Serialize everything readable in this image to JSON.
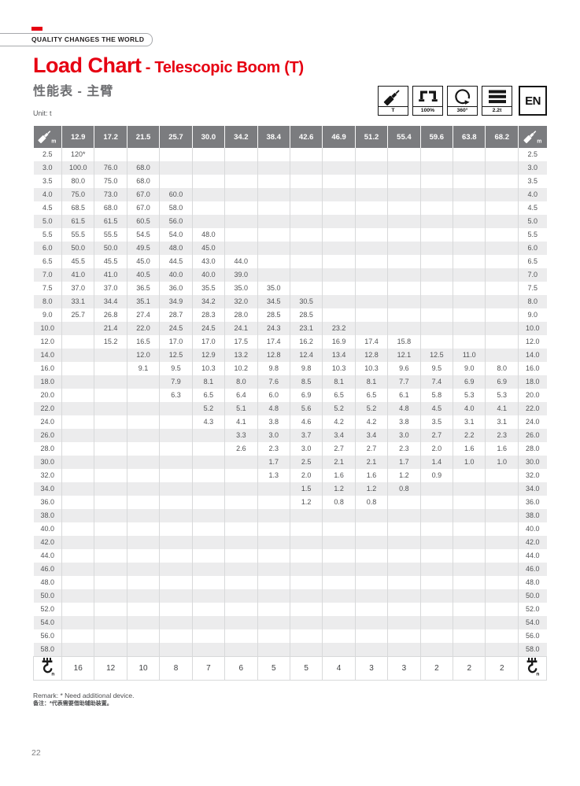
{
  "brand": {
    "tagline": "QUALITY CHANGES THE WORLD"
  },
  "header": {
    "title_main": "Load Chart",
    "title_sub": " - Telescopic Boom (T)",
    "title_cn": "性能表 - 主臂",
    "unit_label": "Unit: t"
  },
  "badges": [
    {
      "icon": "telescopic-boom-icon",
      "label": "T"
    },
    {
      "icon": "outrigger-icon",
      "label": "100%"
    },
    {
      "icon": "slewing-icon",
      "label": "360°"
    },
    {
      "icon": "counterweight-icon",
      "label": "2.2t"
    },
    {
      "icon": "language-badge",
      "label": "EN"
    }
  ],
  "table": {
    "corner_icon": "boom-length-m-icon",
    "hook_icon": "hook-parts-n-icon",
    "boom_lengths": [
      "12.9",
      "17.2",
      "21.5",
      "25.7",
      "30.0",
      "34.2",
      "38.4",
      "42.6",
      "46.9",
      "51.2",
      "55.4",
      "59.6",
      "63.8",
      "68.2"
    ],
    "rows": [
      {
        "radius": "2.5",
        "values": [
          "120*",
          "",
          "",
          "",
          "",
          "",
          "",
          "",
          "",
          "",
          "",
          "",
          "",
          ""
        ]
      },
      {
        "radius": "3.0",
        "values": [
          "100.0",
          "76.0",
          "68.0",
          "",
          "",
          "",
          "",
          "",
          "",
          "",
          "",
          "",
          "",
          ""
        ]
      },
      {
        "radius": "3.5",
        "values": [
          "80.0",
          "75.0",
          "68.0",
          "",
          "",
          "",
          "",
          "",
          "",
          "",
          "",
          "",
          "",
          ""
        ]
      },
      {
        "radius": "4.0",
        "values": [
          "75.0",
          "73.0",
          "67.0",
          "60.0",
          "",
          "",
          "",
          "",
          "",
          "",
          "",
          "",
          "",
          ""
        ]
      },
      {
        "radius": "4.5",
        "values": [
          "68.5",
          "68.0",
          "67.0",
          "58.0",
          "",
          "",
          "",
          "",
          "",
          "",
          "",
          "",
          "",
          ""
        ]
      },
      {
        "radius": "5.0",
        "values": [
          "61.5",
          "61.5",
          "60.5",
          "56.0",
          "",
          "",
          "",
          "",
          "",
          "",
          "",
          "",
          "",
          ""
        ]
      },
      {
        "radius": "5.5",
        "values": [
          "55.5",
          "55.5",
          "54.5",
          "54.0",
          "48.0",
          "",
          "",
          "",
          "",
          "",
          "",
          "",
          "",
          ""
        ]
      },
      {
        "radius": "6.0",
        "values": [
          "50.0",
          "50.0",
          "49.5",
          "48.0",
          "45.0",
          "",
          "",
          "",
          "",
          "",
          "",
          "",
          "",
          ""
        ]
      },
      {
        "radius": "6.5",
        "values": [
          "45.5",
          "45.5",
          "45.0",
          "44.5",
          "43.0",
          "44.0",
          "",
          "",
          "",
          "",
          "",
          "",
          "",
          ""
        ]
      },
      {
        "radius": "7.0",
        "values": [
          "41.0",
          "41.0",
          "40.5",
          "40.0",
          "40.0",
          "39.0",
          "",
          "",
          "",
          "",
          "",
          "",
          "",
          ""
        ]
      },
      {
        "radius": "7.5",
        "values": [
          "37.0",
          "37.0",
          "36.5",
          "36.0",
          "35.5",
          "35.0",
          "35.0",
          "",
          "",
          "",
          "",
          "",
          "",
          ""
        ]
      },
      {
        "radius": "8.0",
        "values": [
          "33.1",
          "34.4",
          "35.1",
          "34.9",
          "34.2",
          "32.0",
          "34.5",
          "30.5",
          "",
          "",
          "",
          "",
          "",
          ""
        ]
      },
      {
        "radius": "9.0",
        "values": [
          "25.7",
          "26.8",
          "27.4",
          "28.7",
          "28.3",
          "28.0",
          "28.5",
          "28.5",
          "",
          "",
          "",
          "",
          "",
          ""
        ]
      },
      {
        "radius": "10.0",
        "values": [
          "",
          "21.4",
          "22.0",
          "24.5",
          "24.5",
          "24.1",
          "24.3",
          "23.1",
          "23.2",
          "",
          "",
          "",
          "",
          ""
        ]
      },
      {
        "radius": "12.0",
        "values": [
          "",
          "15.2",
          "16.5",
          "17.0",
          "17.0",
          "17.5",
          "17.4",
          "16.2",
          "16.9",
          "17.4",
          "15.8",
          "",
          "",
          ""
        ]
      },
      {
        "radius": "14.0",
        "values": [
          "",
          "",
          "12.0",
          "12.5",
          "12.9",
          "13.2",
          "12.8",
          "12.4",
          "13.4",
          "12.8",
          "12.1",
          "12.5",
          "11.0",
          ""
        ]
      },
      {
        "radius": "16.0",
        "values": [
          "",
          "",
          "9.1",
          "9.5",
          "10.3",
          "10.2",
          "9.8",
          "9.8",
          "10.3",
          "10.3",
          "9.6",
          "9.5",
          "9.0",
          "8.0"
        ]
      },
      {
        "radius": "18.0",
        "values": [
          "",
          "",
          "",
          "7.9",
          "8.1",
          "8.0",
          "7.6",
          "8.5",
          "8.1",
          "8.1",
          "7.7",
          "7.4",
          "6.9",
          "6.9"
        ]
      },
      {
        "radius": "20.0",
        "values": [
          "",
          "",
          "",
          "6.3",
          "6.5",
          "6.4",
          "6.0",
          "6.9",
          "6.5",
          "6.5",
          "6.1",
          "5.8",
          "5.3",
          "5.3"
        ]
      },
      {
        "radius": "22.0",
        "values": [
          "",
          "",
          "",
          "",
          "5.2",
          "5.1",
          "4.8",
          "5.6",
          "5.2",
          "5.2",
          "4.8",
          "4.5",
          "4.0",
          "4.1"
        ]
      },
      {
        "radius": "24.0",
        "values": [
          "",
          "",
          "",
          "",
          "4.3",
          "4.1",
          "3.8",
          "4.6",
          "4.2",
          "4.2",
          "3.8",
          "3.5",
          "3.1",
          "3.1"
        ]
      },
      {
        "radius": "26.0",
        "values": [
          "",
          "",
          "",
          "",
          "",
          "3.3",
          "3.0",
          "3.7",
          "3.4",
          "3.4",
          "3.0",
          "2.7",
          "2.2",
          "2.3"
        ]
      },
      {
        "radius": "28.0",
        "values": [
          "",
          "",
          "",
          "",
          "",
          "2.6",
          "2.3",
          "3.0",
          "2.7",
          "2.7",
          "2.3",
          "2.0",
          "1.6",
          "1.6"
        ]
      },
      {
        "radius": "30.0",
        "values": [
          "",
          "",
          "",
          "",
          "",
          "",
          "1.7",
          "2.5",
          "2.1",
          "2.1",
          "1.7",
          "1.4",
          "1.0",
          "1.0"
        ]
      },
      {
        "radius": "32.0",
        "values": [
          "",
          "",
          "",
          "",
          "",
          "",
          "1.3",
          "2.0",
          "1.6",
          "1.6",
          "1.2",
          "0.9",
          "",
          ""
        ]
      },
      {
        "radius": "34.0",
        "values": [
          "",
          "",
          "",
          "",
          "",
          "",
          "",
          "1.5",
          "1.2",
          "1.2",
          "0.8",
          "",
          "",
          ""
        ]
      },
      {
        "radius": "36.0",
        "values": [
          "",
          "",
          "",
          "",
          "",
          "",
          "",
          "1.2",
          "0.8",
          "0.8",
          "",
          "",
          "",
          ""
        ]
      },
      {
        "radius": "38.0",
        "values": [
          "",
          "",
          "",
          "",
          "",
          "",
          "",
          "",
          "",
          "",
          "",
          "",
          "",
          ""
        ]
      },
      {
        "radius": "40.0",
        "values": [
          "",
          "",
          "",
          "",
          "",
          "",
          "",
          "",
          "",
          "",
          "",
          "",
          "",
          ""
        ]
      },
      {
        "radius": "42.0",
        "values": [
          "",
          "",
          "",
          "",
          "",
          "",
          "",
          "",
          "",
          "",
          "",
          "",
          "",
          ""
        ]
      },
      {
        "radius": "44.0",
        "values": [
          "",
          "",
          "",
          "",
          "",
          "",
          "",
          "",
          "",
          "",
          "",
          "",
          "",
          ""
        ]
      },
      {
        "radius": "46.0",
        "values": [
          "",
          "",
          "",
          "",
          "",
          "",
          "",
          "",
          "",
          "",
          "",
          "",
          "",
          ""
        ]
      },
      {
        "radius": "48.0",
        "values": [
          "",
          "",
          "",
          "",
          "",
          "",
          "",
          "",
          "",
          "",
          "",
          "",
          "",
          ""
        ]
      },
      {
        "radius": "50.0",
        "values": [
          "",
          "",
          "",
          "",
          "",
          "",
          "",
          "",
          "",
          "",
          "",
          "",
          "",
          ""
        ]
      },
      {
        "radius": "52.0",
        "values": [
          "",
          "",
          "",
          "",
          "",
          "",
          "",
          "",
          "",
          "",
          "",
          "",
          "",
          ""
        ]
      },
      {
        "radius": "54.0",
        "values": [
          "",
          "",
          "",
          "",
          "",
          "",
          "",
          "",
          "",
          "",
          "",
          "",
          "",
          ""
        ]
      },
      {
        "radius": "56.0",
        "values": [
          "",
          "",
          "",
          "",
          "",
          "",
          "",
          "",
          "",
          "",
          "",
          "",
          "",
          ""
        ]
      },
      {
        "radius": "58.0",
        "values": [
          "",
          "",
          "",
          "",
          "",
          "",
          "",
          "",
          "",
          "",
          "",
          "",
          "",
          ""
        ]
      }
    ],
    "hook_row": [
      "16",
      "12",
      "10",
      "8",
      "7",
      "6",
      "5",
      "5",
      "4",
      "3",
      "3",
      "2",
      "2",
      "2"
    ]
  },
  "remark": {
    "en": "Remark: * Need additional device.",
    "cn": "备注：*代表需要借助辅助装置。"
  },
  "page_number": "22",
  "colors": {
    "accent_red": "#e60012",
    "header_gray": "#7b7c7f",
    "zebra_gray": "#ececed"
  }
}
